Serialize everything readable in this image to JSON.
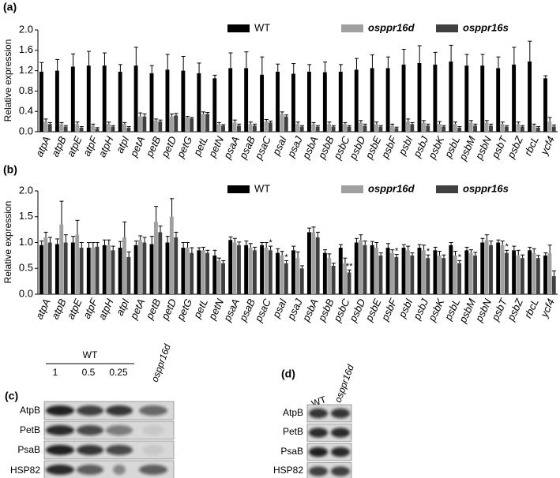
{
  "chart_data": [
    {
      "type": "bar",
      "panel_label": "(a)",
      "y_label": "Relative expression",
      "categories": [
        "atpA",
        "atpB",
        "atpE",
        "atpF",
        "atpH",
        "atpI",
        "petA",
        "petB",
        "petD",
        "petG",
        "petL",
        "petN",
        "psaA",
        "psaB",
        "psaC",
        "psaI",
        "psaJ",
        "psbA",
        "psbB",
        "psbC",
        "psbD",
        "psbE",
        "psbF",
        "psbI",
        "psbJ",
        "psbK",
        "psbL",
        "psbM",
        "psbN",
        "psbT",
        "psbZ",
        "rbcL",
        "ycf4"
      ],
      "series": [
        {
          "name": "WT",
          "color": "#000000",
          "values": [
            1.18,
            1.2,
            1.28,
            1.3,
            1.3,
            1.18,
            1.3,
            1.15,
            1.22,
            1.2,
            1.15,
            1.05,
            1.25,
            1.25,
            1.12,
            1.18,
            1.14,
            1.18,
            1.17,
            1.18,
            1.22,
            1.25,
            1.25,
            1.32,
            1.35,
            1.32,
            1.38,
            1.3,
            1.3,
            1.25,
            1.32,
            1.38,
            1.05
          ],
          "errors": [
            0.18,
            0.22,
            0.25,
            0.28,
            0.25,
            0.14,
            0.36,
            0.15,
            0.3,
            0.28,
            0.2,
            0.06,
            0.3,
            0.32,
            0.35,
            0.15,
            0.2,
            0.14,
            0.2,
            0.14,
            0.22,
            0.26,
            0.22,
            0.3,
            0.34,
            0.24,
            0.32,
            0.22,
            0.22,
            0.22,
            0.34,
            0.4,
            0.05
          ]
        },
        {
          "name": "osppr16d",
          "color": "#a0a0a0",
          "values": [
            0.2,
            0.15,
            0.15,
            0.12,
            0.15,
            0.15,
            0.3,
            0.22,
            0.3,
            0.28,
            0.35,
            0.15,
            0.18,
            0.15,
            0.2,
            0.35,
            0.15,
            0.15,
            0.15,
            0.15,
            0.18,
            0.15,
            0.12,
            0.2,
            0.18,
            0.15,
            0.15,
            0.18,
            0.18,
            0.15,
            0.15,
            0.12,
            0.2
          ],
          "errors": [
            0.05,
            0.03,
            0.04,
            0.03,
            0.04,
            0.03,
            0.07,
            0.03,
            0.05,
            0.02,
            0.04,
            0.03,
            0.05,
            0.04,
            0.04,
            0.04,
            0.04,
            0.03,
            0.04,
            0.03,
            0.04,
            0.04,
            0.03,
            0.05,
            0.04,
            0.05,
            0.04,
            0.04,
            0.04,
            0.04,
            0.04,
            0.03,
            0.08
          ]
        },
        {
          "name": "osppr16s",
          "color": "#404040",
          "values": [
            0.15,
            0.1,
            0.08,
            0.06,
            0.1,
            0.08,
            0.3,
            0.2,
            0.32,
            0.26,
            0.35,
            0.12,
            0.12,
            0.12,
            0.18,
            0.3,
            0.1,
            0.1,
            0.1,
            0.1,
            0.12,
            0.1,
            0.07,
            0.15,
            0.12,
            0.1,
            0.08,
            0.12,
            0.12,
            0.1,
            0.1,
            0.08,
            0.1
          ],
          "errors": [
            0.03,
            0.02,
            0.02,
            0.02,
            0.02,
            0.02,
            0.05,
            0.03,
            0.04,
            0.02,
            0.03,
            0.02,
            0.03,
            0.03,
            0.03,
            0.03,
            0.02,
            0.02,
            0.02,
            0.02,
            0.03,
            0.02,
            0.02,
            0.03,
            0.03,
            0.02,
            0.02,
            0.03,
            0.03,
            0.02,
            0.02,
            0.02,
            0.03
          ]
        }
      ],
      "ylim": [
        0,
        2.0
      ],
      "yticks": [
        {
          "value": 0,
          "label": "0.0"
        },
        0.4,
        0.8,
        1.2,
        1.6,
        {
          "value": 2,
          "label": "2.0"
        }
      ]
    },
    {
      "type": "bar",
      "panel_label": "(b)",
      "y_label": "Relative expression",
      "categories": [
        "atpA",
        "atpB",
        "atpE",
        "atpF",
        "atpH",
        "atpI",
        "petA",
        "petB",
        "petD",
        "petG",
        "petL",
        "petN",
        "psaA",
        "psaB",
        "psaC",
        "psaI",
        "psaJ",
        "psbA",
        "psbB",
        "psbC",
        "psbD",
        "psbE",
        "psbF",
        "psbI",
        "psbJ",
        "psbK",
        "psbL",
        "psbM",
        "psbN",
        "psbT",
        "psbZ",
        "rbcL",
        "ycf4"
      ],
      "series": [
        {
          "name": "WT",
          "color": "#000000",
          "values": [
            0.95,
            0.97,
            1.0,
            0.9,
            0.95,
            0.9,
            0.95,
            0.97,
            1.0,
            0.9,
            0.85,
            0.75,
            1.05,
            0.95,
            0.95,
            0.8,
            0.85,
            1.2,
            0.8,
            0.9,
            1.0,
            0.95,
            0.9,
            0.9,
            0.9,
            0.85,
            0.95,
            0.85,
            1.0,
            1.0,
            0.85,
            0.85,
            0.75
          ],
          "errors": [
            0.08,
            0.1,
            0.12,
            0.1,
            0.1,
            0.12,
            0.08,
            0.15,
            0.12,
            0.1,
            0.05,
            0.1,
            0.06,
            0.08,
            0.05,
            0.08,
            0.08,
            0.08,
            0.06,
            0.06,
            0.08,
            0.07,
            0.08,
            0.06,
            0.06,
            0.06,
            0.05,
            0.06,
            0.08,
            0.05,
            0.08,
            0.06,
            0.05
          ]
        },
        {
          "name": "osppr16d",
          "color": "#a0a0a0",
          "values": [
            1.1,
            1.35,
            1.15,
            0.9,
            0.95,
            1.1,
            1.05,
            1.4,
            1.5,
            0.9,
            0.85,
            0.65,
            1.0,
            0.9,
            0.9,
            0.75,
            0.7,
            1.2,
            0.7,
            0.6,
            1.05,
            0.9,
            0.8,
            0.85,
            0.85,
            0.75,
            0.75,
            0.8,
            1.05,
            0.95,
            0.75,
            0.8,
            0.8
          ],
          "errors": [
            0.1,
            0.45,
            0.28,
            0.1,
            0.1,
            0.3,
            0.08,
            0.3,
            0.35,
            0.1,
            0.06,
            0.05,
            0.08,
            0.08,
            0.1,
            0.08,
            0.12,
            0.1,
            0.08,
            0.1,
            0.1,
            0.1,
            0.06,
            0.08,
            0.1,
            0.08,
            0.08,
            0.06,
            0.1,
            0.08,
            0.1,
            0.08,
            0.15
          ]
        },
        {
          "name": "osppr16s",
          "color": "#404040",
          "values": [
            1.0,
            1.0,
            0.9,
            0.92,
            0.85,
            0.72,
            1.0,
            1.2,
            1.1,
            0.8,
            0.8,
            0.6,
            0.95,
            0.85,
            0.85,
            0.6,
            0.5,
            1.1,
            0.55,
            0.42,
            0.95,
            0.75,
            0.72,
            0.75,
            0.7,
            0.7,
            0.6,
            0.75,
            0.95,
            0.8,
            0.7,
            0.7,
            0.35
          ],
          "errors": [
            0.1,
            0.15,
            0.1,
            0.08,
            0.08,
            0.1,
            0.1,
            0.12,
            0.1,
            0.1,
            0.05,
            0.05,
            0.06,
            0.06,
            0.08,
            0.05,
            0.05,
            0.1,
            0.05,
            0.05,
            0.08,
            0.05,
            0.05,
            0.05,
            0.06,
            0.06,
            0.05,
            0.06,
            0.08,
            0.05,
            0.06,
            0.05,
            0.1
          ]
        }
      ],
      "annotations": [
        {
          "text": "*",
          "at": "psaC"
        },
        {
          "text": "*",
          "at": "psaI"
        },
        {
          "text": "**",
          "at": "psbC"
        },
        {
          "text": "*",
          "at": "psbF"
        },
        {
          "text": "*",
          "at": "psbJ"
        },
        {
          "text": "*",
          "at": "psbL"
        },
        {
          "text": "*",
          "at": "psbT"
        }
      ],
      "ylim": [
        0,
        2.0
      ],
      "yticks": [
        {
          "value": 0,
          "label": "0.0"
        },
        0.5,
        {
          "value": 1,
          "label": "1.0"
        },
        1.5,
        {
          "value": 2,
          "label": "2.0"
        }
      ]
    }
  ],
  "blots": [
    {
      "panel_label": "(c)",
      "group_label": "WT",
      "lanes": [
        "1",
        "0.5",
        "0.25"
      ],
      "sample": "osppr16d",
      "rows": [
        "AtpB",
        "PetB",
        "PsaB",
        "HSP82"
      ]
    },
    {
      "panel_label": "(d)",
      "lanes": [
        "WT",
        "osppr16d"
      ],
      "rows": [
        "AtpB",
        "PetB",
        "PsaB",
        "HSP82"
      ]
    }
  ]
}
